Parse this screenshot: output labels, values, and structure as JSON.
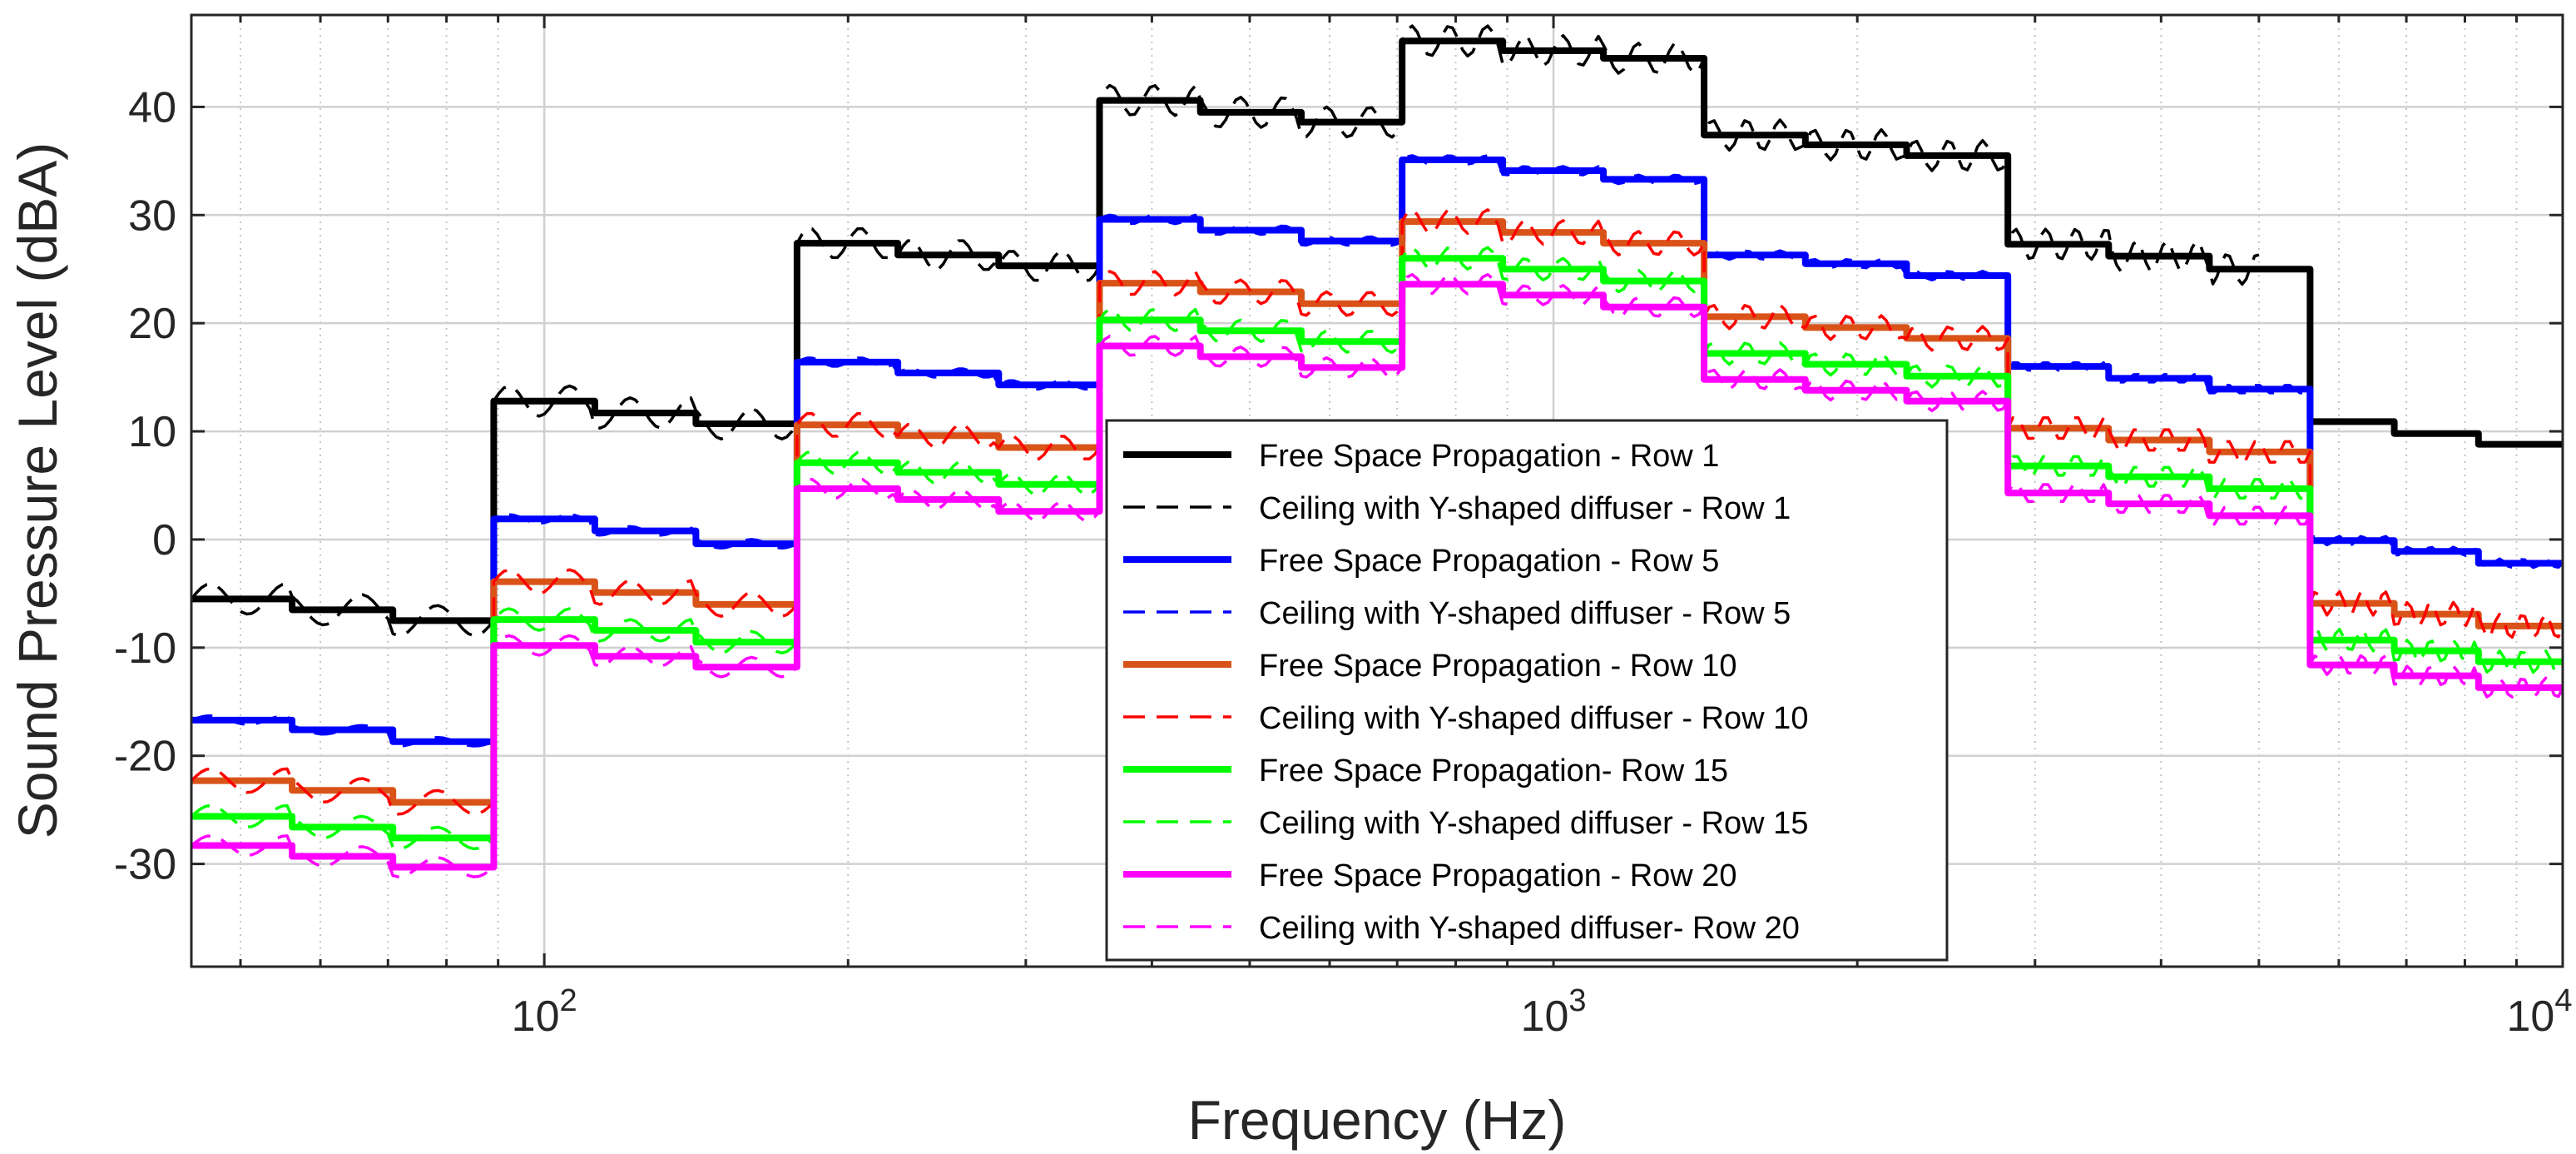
{
  "chart_data": {
    "type": "line",
    "title": "",
    "xlabel": "Frequency (Hz)",
    "ylabel": "Sound Pressure Level (dBA)",
    "xscale": "log",
    "xlim": [
      44.7,
      10000
    ],
    "ylim": [
      -39.5,
      48.5
    ],
    "grid": true,
    "legend_location": "lower-center",
    "xticks": [
      {
        "value": 100,
        "base": "10",
        "exp": "2"
      },
      {
        "value": 1000,
        "base": "10",
        "exp": "3"
      },
      {
        "value": 10000,
        "base": "10",
        "exp": "4"
      }
    ],
    "yticks": [
      -30,
      -20,
      -10,
      0,
      10,
      20,
      30,
      40
    ],
    "band_edges": [
      44.7,
      89.1,
      178,
      355,
      708,
      1410,
      2820,
      5620,
      10000
    ],
    "series": [
      {
        "name": "Free Space Propagation - Row 1",
        "color": "#000000",
        "style": "solid",
        "bands": [
          [
            -5.5,
            -6.5,
            -7.5
          ],
          [
            12.8,
            11.7,
            10.7
          ],
          [
            27.4,
            26.3,
            25.3
          ],
          [
            40.6,
            39.5,
            38.6
          ],
          [
            46.1,
            45.2,
            44.5
          ],
          [
            37.4,
            36.5,
            35.5
          ],
          [
            27.3,
            26.2,
            25.0
          ],
          [
            10.9,
            9.8,
            8.8
          ]
        ]
      },
      {
        "name": "Ceiling with Y-shaped diffuser - Row 1",
        "color": "#000000",
        "style": "dashed",
        "ripple": 1.4,
        "xmax": 5000,
        "bands": [
          [
            -5.5,
            -6.5,
            -7.5
          ],
          [
            12.8,
            11.7,
            10.7
          ],
          [
            27.4,
            26.3,
            25.3
          ],
          [
            40.6,
            39.5,
            38.6
          ],
          [
            46.1,
            45.2,
            44.5
          ],
          [
            37.4,
            36.5,
            35.5
          ],
          [
            27.3,
            26.2,
            25.0
          ],
          [
            10.9,
            9.8,
            8.8
          ]
        ]
      },
      {
        "name": "Free Space Propagation - Row 5",
        "color": "#0000ff",
        "style": "solid",
        "bands": [
          [
            -16.7,
            -17.6,
            -18.7
          ],
          [
            1.9,
            0.8,
            -0.4
          ],
          [
            16.4,
            15.4,
            14.3
          ],
          [
            29.6,
            28.6,
            27.6
          ],
          [
            35.1,
            34.1,
            33.3
          ],
          [
            26.3,
            25.5,
            24.4
          ],
          [
            16.0,
            14.9,
            13.9
          ],
          [
            -0.1,
            -1.1,
            -2.2
          ]
        ]
      },
      {
        "name": "Ceiling with Y-shaped diffuser - Row 5",
        "color": "#0000ff",
        "style": "dashed",
        "ripple": 0.4,
        "bands": [
          [
            -16.7,
            -17.6,
            -18.7
          ],
          [
            1.9,
            0.8,
            -0.4
          ],
          [
            16.4,
            15.4,
            14.3
          ],
          [
            29.6,
            28.6,
            27.6
          ],
          [
            35.1,
            34.1,
            33.3
          ],
          [
            26.3,
            25.5,
            24.4
          ],
          [
            16.0,
            14.9,
            13.9
          ],
          [
            -0.1,
            -1.1,
            -2.2
          ]
        ]
      },
      {
        "name": "Free Space Propagation - Row 10",
        "color": "#d95319",
        "style": "solid",
        "bands": [
          [
            -22.3,
            -23.2,
            -24.3
          ],
          [
            -3.9,
            -4.9,
            -6.0
          ],
          [
            10.6,
            9.6,
            8.5
          ],
          [
            23.7,
            22.9,
            21.8
          ],
          [
            29.4,
            28.4,
            27.4
          ],
          [
            20.6,
            19.6,
            18.6
          ],
          [
            10.3,
            9.2,
            8.1
          ],
          [
            -5.9,
            -6.9,
            -8.0
          ]
        ]
      },
      {
        "name": "Ceiling with Y-shaped diffuser - Row 10",
        "color": "#ff0000",
        "style": "dashed",
        "ripple": 1.1,
        "bands": [
          [
            -22.3,
            -23.2,
            -24.3
          ],
          [
            -3.9,
            -4.9,
            -6.0
          ],
          [
            10.6,
            9.6,
            8.5
          ],
          [
            23.7,
            22.9,
            21.8
          ],
          [
            29.4,
            28.4,
            27.4
          ],
          [
            20.6,
            19.6,
            18.6
          ],
          [
            10.3,
            9.2,
            8.1
          ],
          [
            -5.9,
            -6.9,
            -8.0
          ]
        ]
      },
      {
        "name": "Free Space Propagation- Row 15",
        "color": "#00ff00",
        "style": "solid",
        "bands": [
          [
            -25.6,
            -26.6,
            -27.6
          ],
          [
            -7.4,
            -8.4,
            -9.5
          ],
          [
            7.1,
            6.2,
            5.1
          ],
          [
            20.3,
            19.3,
            18.3
          ],
          [
            26.0,
            25.0,
            23.9
          ],
          [
            17.2,
            16.2,
            15.1
          ],
          [
            6.8,
            5.8,
            4.7
          ],
          [
            -9.3,
            -10.3,
            -11.3
          ]
        ]
      },
      {
        "name": "Ceiling with Y-shaped diffuser - Row 15",
        "color": "#00ff00",
        "style": "dashed",
        "ripple": 1.0,
        "bands": [
          [
            -25.6,
            -26.6,
            -27.6
          ],
          [
            -7.4,
            -8.4,
            -9.5
          ],
          [
            7.1,
            6.2,
            5.1
          ],
          [
            20.3,
            19.3,
            18.3
          ],
          [
            26.0,
            25.0,
            23.9
          ],
          [
            17.2,
            16.2,
            15.1
          ],
          [
            6.8,
            5.8,
            4.7
          ],
          [
            -9.3,
            -10.3,
            -11.3
          ]
        ]
      },
      {
        "name": "Free Space Propagation - Row 20",
        "color": "#ff00ff",
        "style": "solid",
        "bands": [
          [
            -28.3,
            -29.3,
            -30.3
          ],
          [
            -9.8,
            -10.8,
            -11.8
          ],
          [
            4.7,
            3.7,
            2.6
          ],
          [
            17.9,
            16.9,
            15.9
          ],
          [
            23.6,
            22.6,
            21.5
          ],
          [
            14.8,
            13.8,
            12.8
          ],
          [
            4.3,
            3.3,
            2.2
          ],
          [
            -11.6,
            -12.6,
            -13.7
          ]
        ]
      },
      {
        "name": "Ceiling with Y-shaped diffuser- Row 20",
        "color": "#ff00ff",
        "style": "dashed",
        "ripple": 0.9,
        "bands": [
          [
            -28.3,
            -29.3,
            -30.3
          ],
          [
            -9.8,
            -10.8,
            -11.8
          ],
          [
            4.7,
            3.7,
            2.6
          ],
          [
            17.9,
            16.9,
            15.9
          ],
          [
            23.6,
            22.6,
            21.5
          ],
          [
            14.8,
            13.8,
            12.8
          ],
          [
            4.3,
            3.3,
            2.2
          ],
          [
            -11.6,
            -12.6,
            -13.7
          ]
        ]
      }
    ]
  }
}
